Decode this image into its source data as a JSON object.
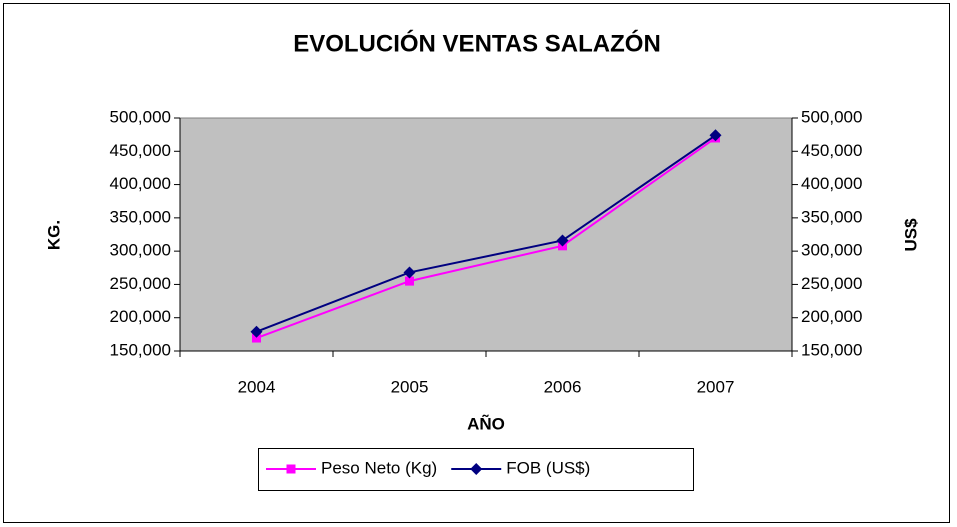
{
  "chart_data": {
    "type": "line",
    "title": "EVOLUCIÓN VENTAS SALAZÓN",
    "x_label": "AÑO",
    "y_label": "KG.",
    "y2_label": "US$",
    "categories": [
      "2004",
      "2005",
      "2006",
      "2007"
    ],
    "series": [
      {
        "name": "Peso Neto (Kg)",
        "color": "#ff00ff",
        "marker": "square",
        "values": [
          169500,
          255000,
          308000,
          470000
        ]
      },
      {
        "name": "FOB (US$)",
        "color": "#000080",
        "marker": "diamond",
        "axis": "y2",
        "values": [
          179000,
          268000,
          316000,
          474000
        ]
      }
    ],
    "ylim": [
      150000,
      500000
    ],
    "yticks": [
      {
        "value": 150000,
        "label": "150,000"
      },
      {
        "value": 200000,
        "label": "200,000"
      },
      {
        "value": 250000,
        "label": "250,000"
      },
      {
        "value": 300000,
        "label": "300,000"
      },
      {
        "value": 350000,
        "label": "350,000"
      },
      {
        "value": 400000,
        "label": "400,000"
      },
      {
        "value": 450000,
        "label": "450,000"
      },
      {
        "value": 500000,
        "label": "500,000"
      }
    ],
    "y2lim": [
      150000,
      500000
    ],
    "y2ticks": [
      {
        "value": 150000,
        "label": "150,000"
      },
      {
        "value": 200000,
        "label": "200,000"
      },
      {
        "value": 250000,
        "label": "250,000"
      },
      {
        "value": 300000,
        "label": "300,000"
      },
      {
        "value": 350000,
        "label": "350,000"
      },
      {
        "value": 400000,
        "label": "400,000"
      },
      {
        "value": 450000,
        "label": "450,000"
      },
      {
        "value": 500000,
        "label": "500,000"
      }
    ],
    "grid": false,
    "legend": "bottom",
    "plot_background": "#c0c0c0"
  }
}
